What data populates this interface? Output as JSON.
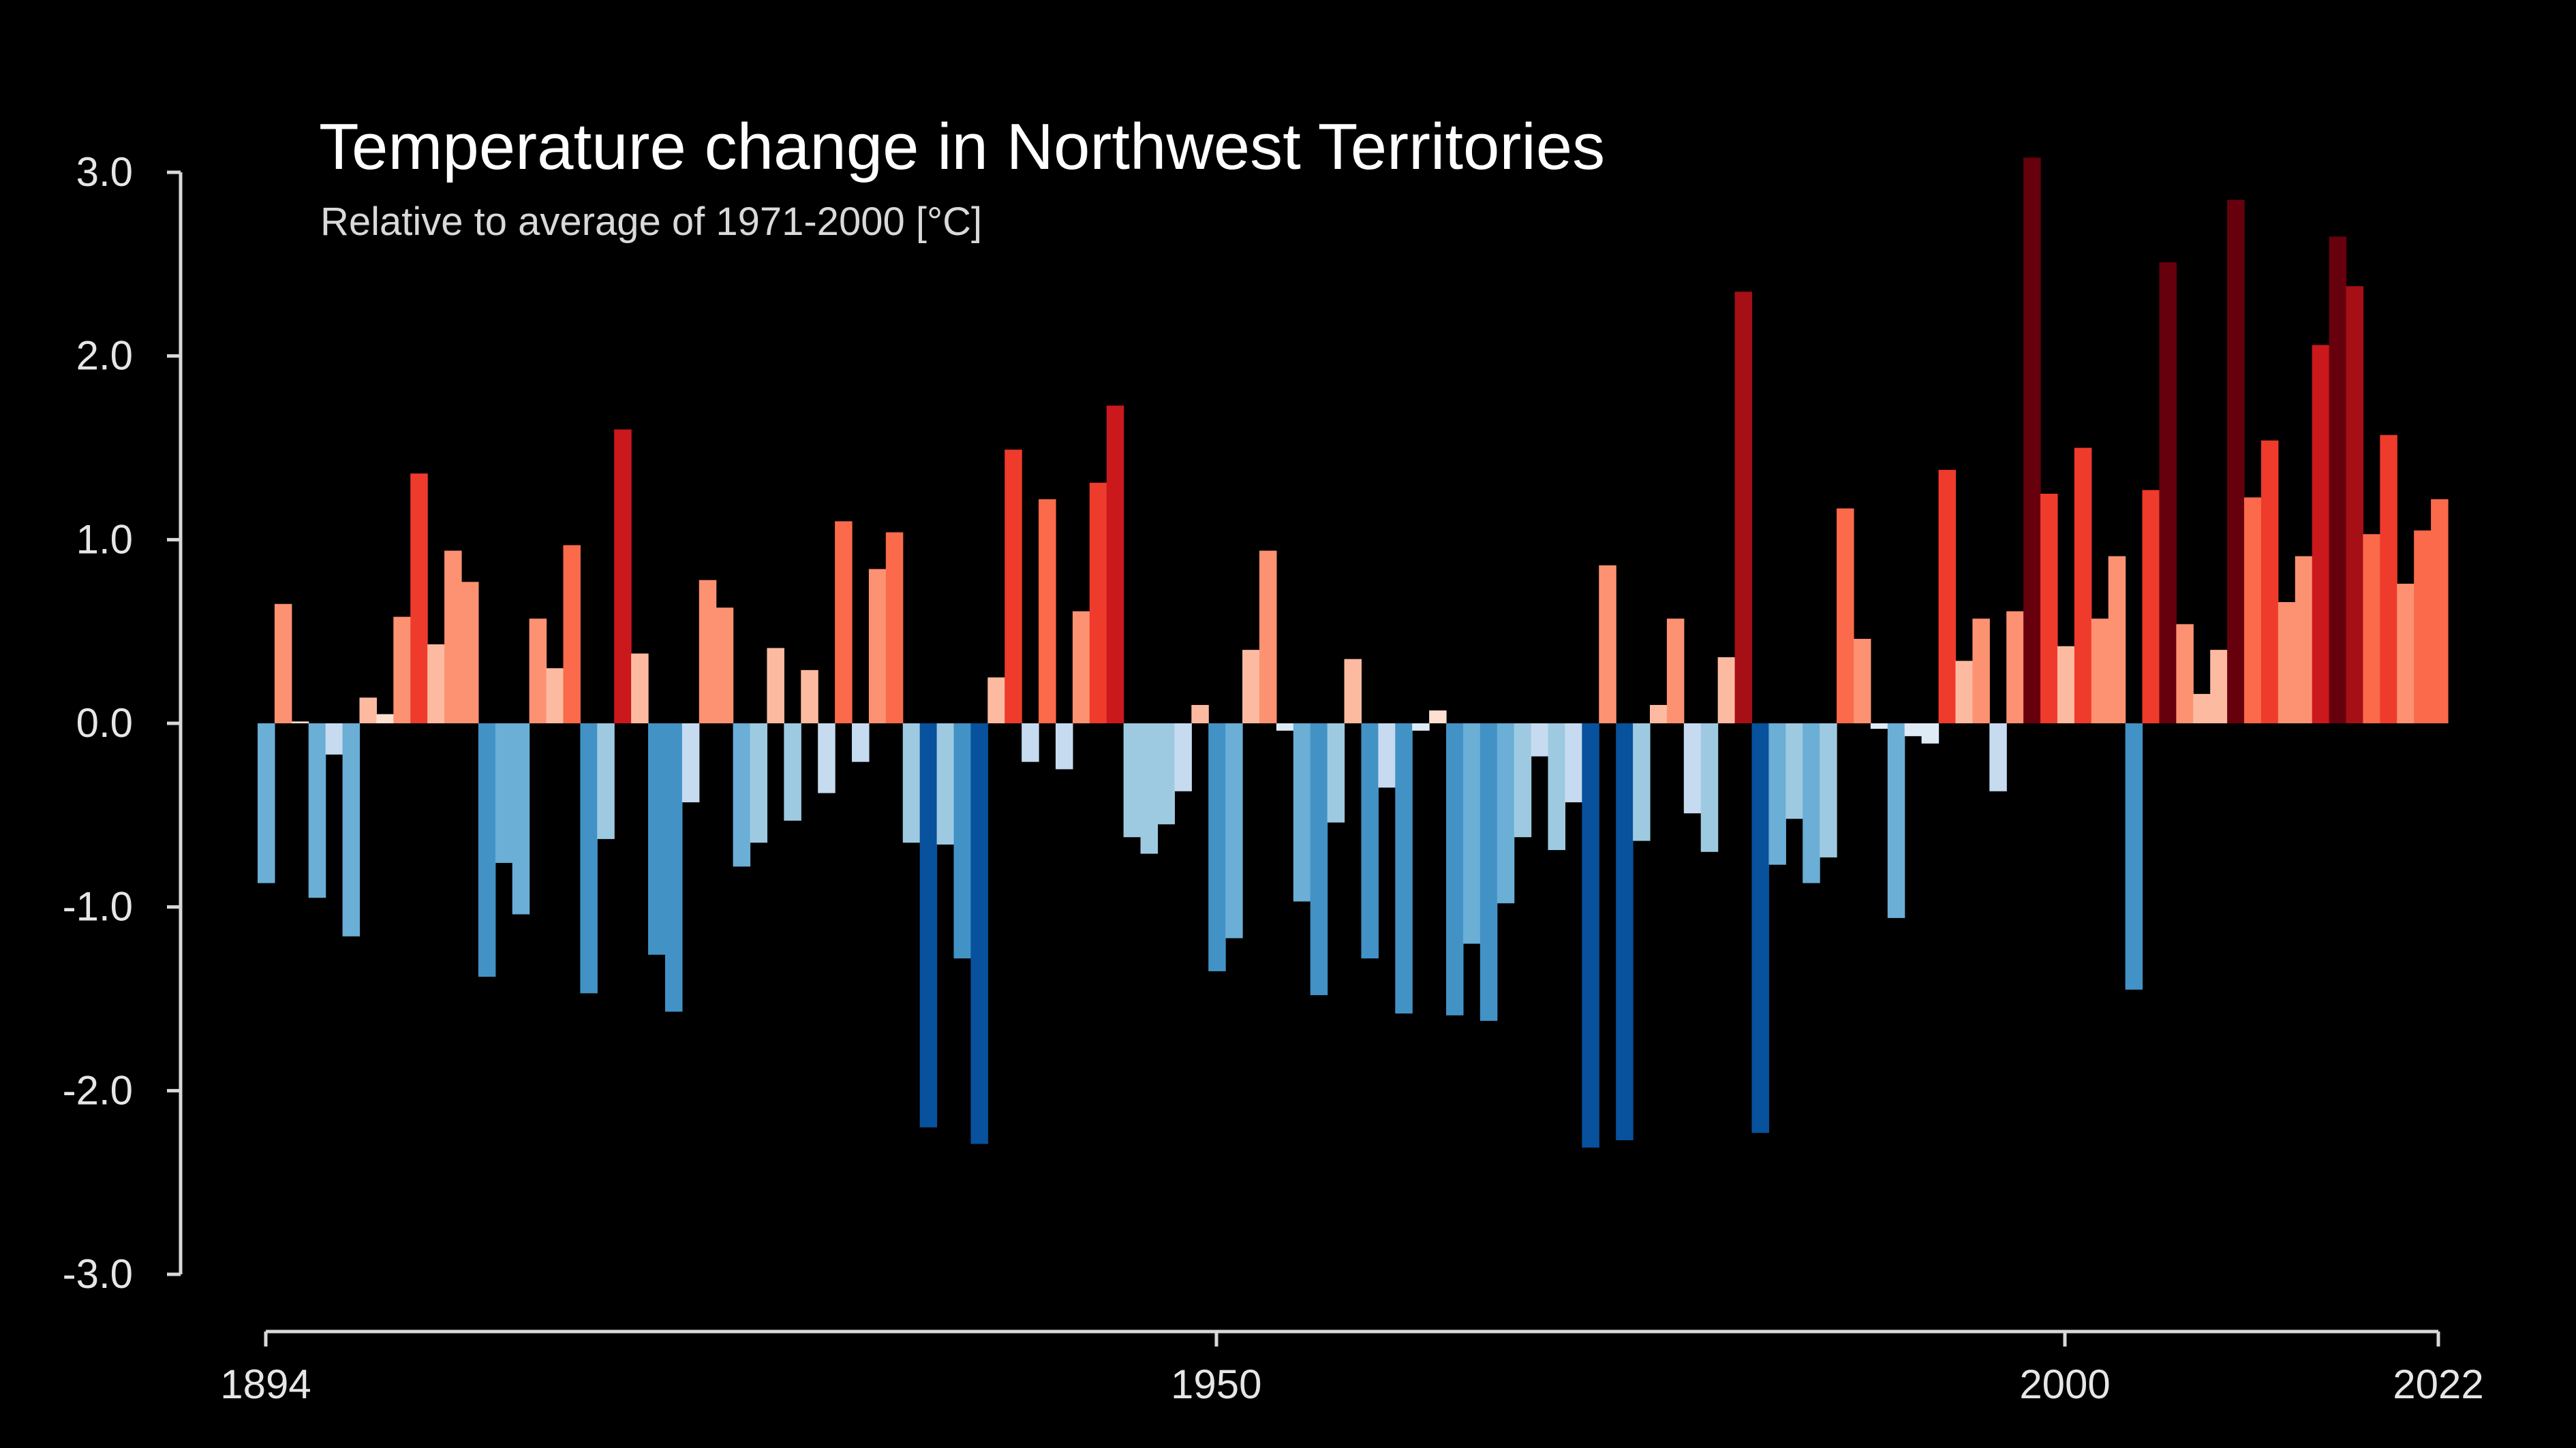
{
  "chart_data": {
    "type": "bar",
    "title": "Temperature change in Northwest Territories",
    "subtitle": "Relative to average of 1971-2000  [°C]",
    "xlabel": "",
    "ylabel": "",
    "ylim": [
      -3.0,
      3.0
    ],
    "xlim": [
      1894,
      2022
    ],
    "y_ticks": [
      "3.0",
      "2.0",
      "1.0",
      "0.0",
      "-1.0",
      "-2.0",
      "-3.0"
    ],
    "x_ticks": [
      "1894",
      "1950",
      "2000",
      "2022"
    ],
    "grid": false,
    "legend": "none",
    "colormap": "red-blue diverging (warming stripes)",
    "x": [
      1894,
      1895,
      1896,
      1897,
      1898,
      1899,
      1900,
      1901,
      1902,
      1903,
      1904,
      1905,
      1906,
      1907,
      1908,
      1909,
      1910,
      1911,
      1912,
      1913,
      1914,
      1915,
      1916,
      1917,
      1918,
      1919,
      1920,
      1921,
      1922,
      1923,
      1924,
      1925,
      1926,
      1927,
      1928,
      1929,
      1930,
      1931,
      1932,
      1933,
      1934,
      1935,
      1936,
      1937,
      1938,
      1939,
      1940,
      1941,
      1942,
      1943,
      1944,
      1945,
      1946,
      1947,
      1948,
      1949,
      1950,
      1951,
      1952,
      1953,
      1954,
      1955,
      1956,
      1957,
      1958,
      1959,
      1960,
      1961,
      1962,
      1963,
      1964,
      1965,
      1966,
      1967,
      1968,
      1969,
      1970,
      1971,
      1972,
      1973,
      1974,
      1975,
      1976,
      1977,
      1978,
      1979,
      1980,
      1981,
      1982,
      1983,
      1984,
      1985,
      1986,
      1987,
      1988,
      1989,
      1990,
      1991,
      1992,
      1993,
      1994,
      1995,
      1996,
      1997,
      1998,
      1999,
      2000,
      2001,
      2002,
      2003,
      2004,
      2005,
      2006,
      2007,
      2008,
      2009,
      2010,
      2011,
      2012,
      2013,
      2014,
      2015,
      2016,
      2017,
      2018,
      2019,
      2020,
      2021,
      2022
    ],
    "values": [
      -0.87,
      0.65,
      0.01,
      -0.95,
      -0.17,
      -1.16,
      0.14,
      0.05,
      0.58,
      1.36,
      0.43,
      0.94,
      0.77,
      -1.38,
      -0.76,
      -1.04,
      0.57,
      0.3,
      0.97,
      -1.47,
      -0.63,
      1.6,
      0.38,
      -1.26,
      -1.57,
      -0.43,
      0.78,
      0.63,
      -0.78,
      -0.65,
      0.41,
      -0.53,
      0.29,
      -0.38,
      1.1,
      -0.21,
      0.84,
      1.04,
      -0.65,
      -2.2,
      -0.66,
      -1.28,
      -2.29,
      0.25,
      1.49,
      -0.21,
      1.22,
      -0.25,
      0.61,
      1.31,
      1.73,
      -0.62,
      -0.71,
      -0.55,
      -0.37,
      0.1,
      -1.35,
      -1.17,
      0.4,
      0.94,
      -0.04,
      -0.97,
      -1.48,
      -0.54,
      0.35,
      -1.28,
      -0.35,
      -1.58,
      -0.04,
      0.07,
      -1.59,
      -1.2,
      -1.62,
      -0.98,
      -0.62,
      -0.18,
      -0.69,
      -0.43,
      -2.31,
      0.86,
      -2.27,
      -0.64,
      0.1,
      0.57,
      -0.49,
      -0.7,
      0.36,
      2.35,
      -2.23,
      -0.77,
      -0.52,
      -0.87,
      -0.73,
      1.17,
      0.46,
      -0.03,
      -1.06,
      -0.07,
      -0.11,
      1.38,
      0.34,
      0.57,
      -0.37,
      0.61,
      3.08,
      1.25,
      0.42,
      1.5,
      0.57,
      0.91,
      -1.45,
      1.27,
      2.51,
      0.54,
      0.16,
      0.4,
      2.85,
      1.23,
      1.54,
      0.66,
      0.91,
      2.06,
      2.65,
      2.38,
      1.03,
      1.57,
      0.76,
      1.05,
      1.22
    ]
  }
}
